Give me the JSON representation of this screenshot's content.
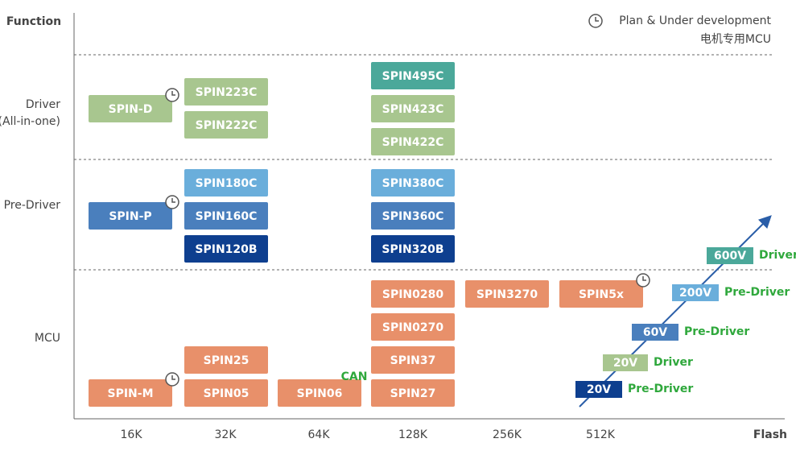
{
  "axes": {
    "y_title": "Function",
    "x_title": "Flash"
  },
  "legend": {
    "line1": "Plan & Under development",
    "line2": "电机专用MCU"
  },
  "row_labels": [
    [
      "Driver",
      "(All-in-one)"
    ],
    [
      "Pre-Driver"
    ],
    [
      "MCU"
    ]
  ],
  "columns": [
    "16K",
    "32K",
    "64K",
    "128K",
    "256K",
    "512K"
  ],
  "products": [
    {
      "name": "SPIN-D",
      "color": "#a8c68f",
      "plan": true
    },
    {
      "name": "SPIN223C",
      "color": "#a8c68f",
      "plan": false
    },
    {
      "name": "SPIN222C",
      "color": "#a8c68f",
      "plan": false
    },
    {
      "name": "SPIN495C",
      "color": "#4ba89a",
      "plan": false
    },
    {
      "name": "SPIN423C",
      "color": "#a8c68f",
      "plan": false
    },
    {
      "name": "SPIN422C",
      "color": "#a8c68f",
      "plan": false
    },
    {
      "name": "SPIN-P",
      "color": "#4a7fbd",
      "plan": true
    },
    {
      "name": "SPIN180C",
      "color": "#6aaedb",
      "plan": false
    },
    {
      "name": "SPIN160C",
      "color": "#4a7fbd",
      "plan": false
    },
    {
      "name": "SPIN120B",
      "color": "#0e3f8f",
      "plan": false
    },
    {
      "name": "SPIN380C",
      "color": "#6aaedb",
      "plan": false
    },
    {
      "name": "SPIN360C",
      "color": "#4a7fbd",
      "plan": false
    },
    {
      "name": "SPIN320B",
      "color": "#0e3f8f",
      "plan": false
    },
    {
      "name": "SPIN0280",
      "color": "#e8906a",
      "plan": false
    },
    {
      "name": "SPIN3270",
      "color": "#e8906a",
      "plan": false
    },
    {
      "name": "SPIN5x",
      "color": "#e8906a",
      "plan": true
    },
    {
      "name": "SPIN0270",
      "color": "#e8906a",
      "plan": false
    },
    {
      "name": "SPIN37",
      "color": "#e8906a",
      "plan": false
    },
    {
      "name": "SPIN25",
      "color": "#e8906a",
      "plan": false
    },
    {
      "name": "SPIN-M",
      "color": "#e8906a",
      "plan": true
    },
    {
      "name": "SPIN05",
      "color": "#e8906a",
      "plan": false
    },
    {
      "name": "SPIN06",
      "color": "#e8906a",
      "plan": false
    },
    {
      "name": "SPIN27",
      "color": "#e8906a",
      "plan": false
    }
  ],
  "can_label": "CAN",
  "voltage_steps": [
    {
      "voltage": "20V",
      "label": "Pre-Driver",
      "color": "#0e3f8f"
    },
    {
      "voltage": "20V",
      "label": "Driver",
      "color": "#a8c68f"
    },
    {
      "voltage": "60V",
      "label": "Pre-Driver",
      "color": "#4a7fbd"
    },
    {
      "voltage": "200V",
      "label": "Pre-Driver",
      "color": "#6aaedb"
    },
    {
      "voltage": "600V",
      "label": "Driver",
      "color": "#4ba89a"
    }
  ]
}
